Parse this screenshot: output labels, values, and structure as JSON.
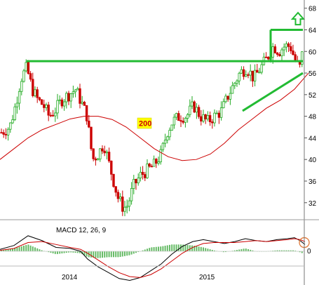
{
  "chart_data": [
    {
      "type": "candlestick",
      "y_ticks": [
        32,
        36,
        40,
        44,
        48,
        52,
        56,
        60,
        64,
        68
      ],
      "ylim": [
        29.5,
        69
      ],
      "x_labels": [
        {
          "label": "2014",
          "t": 100
        },
        {
          "label": "2015",
          "t": 296
        }
      ],
      "colors": {
        "up": "#22aa22",
        "down": "#cc0000",
        "ma": "#cc0000",
        "annotation": "#22bb33"
      },
      "candle_close_path": [
        [
          2,
          45
        ],
        [
          14,
          46
        ],
        [
          22,
          50
        ],
        [
          30,
          55
        ],
        [
          38,
          57
        ],
        [
          46,
          53
        ],
        [
          54,
          51
        ],
        [
          62,
          50
        ],
        [
          70,
          48
        ],
        [
          78,
          49
        ],
        [
          88,
          51
        ],
        [
          98,
          52
        ],
        [
          108,
          53
        ],
        [
          118,
          50
        ],
        [
          124,
          48
        ],
        [
          128,
          44
        ],
        [
          132,
          40
        ],
        [
          140,
          41
        ],
        [
          148,
          43
        ],
        [
          156,
          39
        ],
        [
          162,
          36
        ],
        [
          168,
          33
        ],
        [
          176,
          31
        ],
        [
          182,
          31.5
        ],
        [
          190,
          35
        ],
        [
          200,
          37
        ],
        [
          210,
          38
        ],
        [
          220,
          39
        ],
        [
          230,
          41
        ],
        [
          238,
          45
        ],
        [
          246,
          47
        ],
        [
          256,
          48
        ],
        [
          266,
          48
        ],
        [
          276,
          50
        ],
        [
          286,
          48
        ],
        [
          296,
          47
        ],
        [
          306,
          48
        ],
        [
          316,
          49
        ],
        [
          326,
          52
        ],
        [
          334,
          54
        ],
        [
          342,
          56
        ],
        [
          352,
          57
        ],
        [
          362,
          55
        ],
        [
          372,
          57
        ],
        [
          382,
          59
        ],
        [
          390,
          61
        ],
        [
          398,
          60
        ],
        [
          406,
          61
        ],
        [
          414,
          61
        ],
        [
          422,
          58
        ],
        [
          428,
          57
        ],
        [
          434,
          62
        ]
      ],
      "ma200": {
        "label": "200",
        "points": [
          [
            0,
            40
          ],
          [
            20,
            42
          ],
          [
            40,
            44
          ],
          [
            60,
            45.5
          ],
          [
            80,
            46.5
          ],
          [
            100,
            47.5
          ],
          [
            120,
            48
          ],
          [
            140,
            48
          ],
          [
            160,
            47.4
          ],
          [
            180,
            46
          ],
          [
            200,
            44
          ],
          [
            220,
            42
          ],
          [
            240,
            40.5
          ],
          [
            260,
            39.8
          ],
          [
            280,
            40
          ],
          [
            300,
            41
          ],
          [
            320,
            43
          ],
          [
            340,
            45.5
          ],
          [
            360,
            47.5
          ],
          [
            380,
            49.5
          ],
          [
            400,
            51
          ],
          [
            420,
            53
          ],
          [
            440,
            56
          ]
        ]
      },
      "annotations": {
        "resistance": [
          [
            38,
            58.2
          ],
          [
            432,
            58.2
          ]
        ],
        "triangle_top": [
          [
            386,
            64
          ],
          [
            432,
            64
          ]
        ],
        "triangle_bottom": [
          [
            346,
            49
          ],
          [
            432,
            56
          ]
        ],
        "triangle_left": [
          [
            386,
            58.2
          ],
          [
            386,
            64
          ]
        ],
        "arrow_up_at": [
          425,
          66
        ]
      }
    },
    {
      "type": "line",
      "title": "MACD 12, 26, 9",
      "zero_label": "0",
      "ylim": [
        -3.2,
        2.6
      ],
      "series": [
        {
          "key": "macd",
          "color": "#000000",
          "points": [
            [
              0,
              0.2
            ],
            [
              20,
              0.6
            ],
            [
              40,
              1.6
            ],
            [
              60,
              1.1
            ],
            [
              80,
              0.4
            ],
            [
              100,
              0.3
            ],
            [
              115,
              0.0
            ],
            [
              125,
              -0.8
            ],
            [
              140,
              -1.6
            ],
            [
              155,
              -2.2
            ],
            [
              170,
              -2.8
            ],
            [
              185,
              -3.0
            ],
            [
              200,
              -2.7
            ],
            [
              215,
              -2.0
            ],
            [
              230,
              -1.3
            ],
            [
              245,
              -0.3
            ],
            [
              260,
              0.5
            ],
            [
              275,
              1.0
            ],
            [
              290,
              1.2
            ],
            [
              305,
              1.0
            ],
            [
              320,
              0.8
            ],
            [
              335,
              1.0
            ],
            [
              350,
              1.3
            ],
            [
              365,
              1.1
            ],
            [
              380,
              1.0
            ],
            [
              395,
              1.2
            ],
            [
              410,
              1.3
            ],
            [
              420,
              1.4
            ],
            [
              428,
              1.1
            ],
            [
              435,
              0.7
            ]
          ]
        },
        {
          "key": "signal",
          "color": "#cc0000",
          "points": [
            [
              0,
              0.1
            ],
            [
              20,
              0.3
            ],
            [
              40,
              0.9
            ],
            [
              60,
              1.0
            ],
            [
              80,
              0.7
            ],
            [
              100,
              0.4
            ],
            [
              115,
              0.2
            ],
            [
              125,
              -0.2
            ],
            [
              140,
              -0.9
            ],
            [
              155,
              -1.6
            ],
            [
              170,
              -2.2
            ],
            [
              185,
              -2.6
            ],
            [
              200,
              -2.7
            ],
            [
              215,
              -2.4
            ],
            [
              230,
              -1.8
            ],
            [
              245,
              -1.0
            ],
            [
              260,
              -0.2
            ],
            [
              275,
              0.4
            ],
            [
              290,
              0.8
            ],
            [
              305,
              0.9
            ],
            [
              320,
              0.9
            ],
            [
              335,
              0.9
            ],
            [
              350,
              1.0
            ],
            [
              365,
              1.1
            ],
            [
              380,
              1.0
            ],
            [
              395,
              1.1
            ],
            [
              410,
              1.2
            ],
            [
              420,
              1.3
            ],
            [
              428,
              1.2
            ],
            [
              435,
              1.0
            ]
          ]
        }
      ],
      "histogram_color": "#66bb66",
      "highlight_color": "#e07a3a"
    }
  ]
}
